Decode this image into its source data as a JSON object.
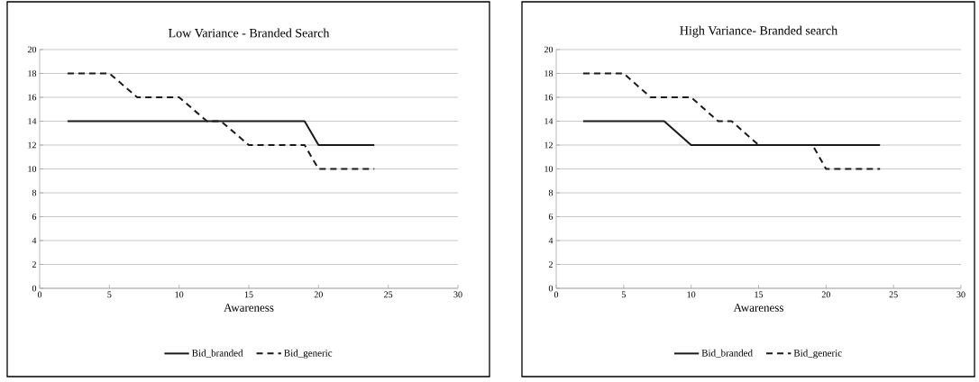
{
  "chart_data": [
    {
      "type": "line",
      "title": "Low Variance - Branded Search",
      "xlabel": "Awareness",
      "xlim": [
        0,
        30
      ],
      "xticks": [
        0,
        5,
        10,
        15,
        20,
        25,
        30
      ],
      "ylim": [
        0,
        20
      ],
      "yticks": [
        0,
        2,
        4,
        6,
        8,
        10,
        12,
        14,
        16,
        18,
        20
      ],
      "grid": "y",
      "legend": "bottom",
      "series": [
        {
          "name": "Bid_branded",
          "color": "#1a1a1a",
          "line_style": "solid",
          "x": [
            2,
            19,
            20,
            24
          ],
          "values": [
            14,
            14,
            12,
            12
          ]
        },
        {
          "name": "Bid_generic",
          "color": "#1a1a1a",
          "line_style": "dashed",
          "x": [
            2,
            5,
            7,
            10,
            12,
            13,
            15,
            19,
            20,
            24
          ],
          "values": [
            18,
            18,
            16,
            16,
            14,
            14,
            12,
            12,
            10,
            10
          ]
        }
      ]
    },
    {
      "type": "line",
      "title": "High Variance- Branded search",
      "xlabel": "Awareness",
      "xlim": [
        0,
        30
      ],
      "xticks": [
        0,
        5,
        10,
        15,
        20,
        25,
        30
      ],
      "ylim": [
        0,
        20
      ],
      "yticks": [
        0,
        2,
        4,
        6,
        8,
        10,
        12,
        14,
        16,
        18,
        20
      ],
      "grid": "y",
      "legend": "bottom",
      "series": [
        {
          "name": "Bid_branded",
          "color": "#1a1a1a",
          "line_style": "solid",
          "x": [
            2,
            8,
            10,
            24
          ],
          "values": [
            14,
            14,
            12,
            12
          ]
        },
        {
          "name": "Bid_generic",
          "color": "#1a1a1a",
          "line_style": "dashed",
          "x": [
            2,
            5,
            7,
            10,
            12,
            13,
            15,
            19,
            20,
            24
          ],
          "values": [
            18,
            18,
            16,
            16,
            14,
            14,
            12,
            12,
            10,
            10
          ]
        }
      ]
    }
  ]
}
